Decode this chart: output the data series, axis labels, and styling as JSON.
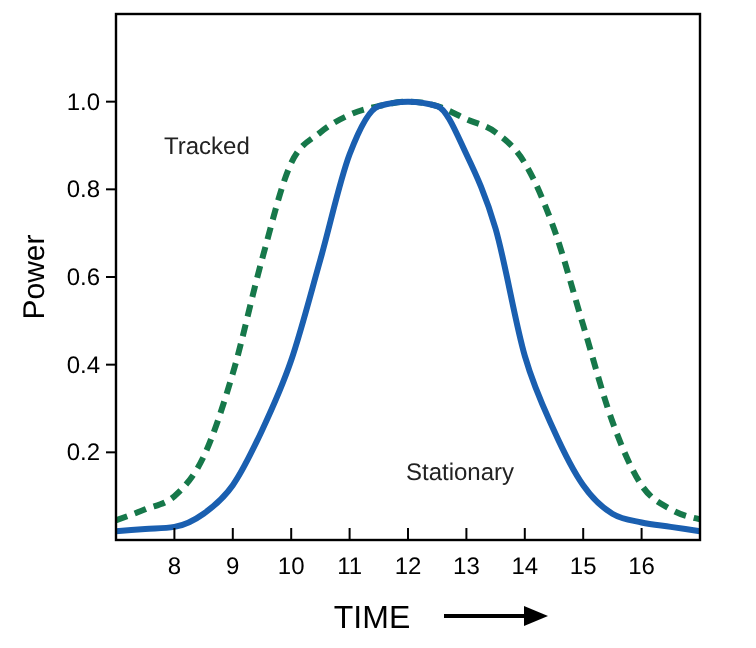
{
  "chart_data": {
    "type": "line",
    "xlabel": "TIME",
    "ylabel": "Power",
    "xlim": [
      7,
      17
    ],
    "ylim": [
      0,
      1.2
    ],
    "xticks": [
      8,
      9,
      10,
      11,
      12,
      13,
      14,
      15,
      16
    ],
    "yticks": [
      0.2,
      0.4,
      0.6,
      0.8,
      {
        "value": 1.0,
        "label": "1.0"
      }
    ],
    "x": [
      7,
      7.5,
      8,
      8.5,
      9,
      9.5,
      10,
      10.5,
      11,
      11.5,
      12,
      12.5,
      13,
      13.5,
      14,
      14.5,
      15,
      15.5,
      16,
      16.5,
      17
    ],
    "legend": false,
    "grid": false,
    "series": [
      {
        "name": "Tracked",
        "color": "#16784a",
        "line_style": "dashed",
        "values": [
          0.045,
          0.07,
          0.1,
          0.19,
          0.38,
          0.64,
          0.86,
          0.93,
          0.97,
          0.99,
          1.0,
          0.99,
          0.96,
          0.93,
          0.86,
          0.71,
          0.49,
          0.27,
          0.125,
          0.07,
          0.047
        ]
      },
      {
        "name": "Stationary",
        "color": "#1a5fb0",
        "line_style": "solid",
        "values": [
          0.02,
          0.025,
          0.03,
          0.06,
          0.125,
          0.25,
          0.41,
          0.64,
          0.88,
          0.99,
          1.0,
          0.99,
          0.88,
          0.71,
          0.42,
          0.25,
          0.125,
          0.06,
          0.04,
          0.03,
          0.02
        ]
      }
    ]
  }
}
